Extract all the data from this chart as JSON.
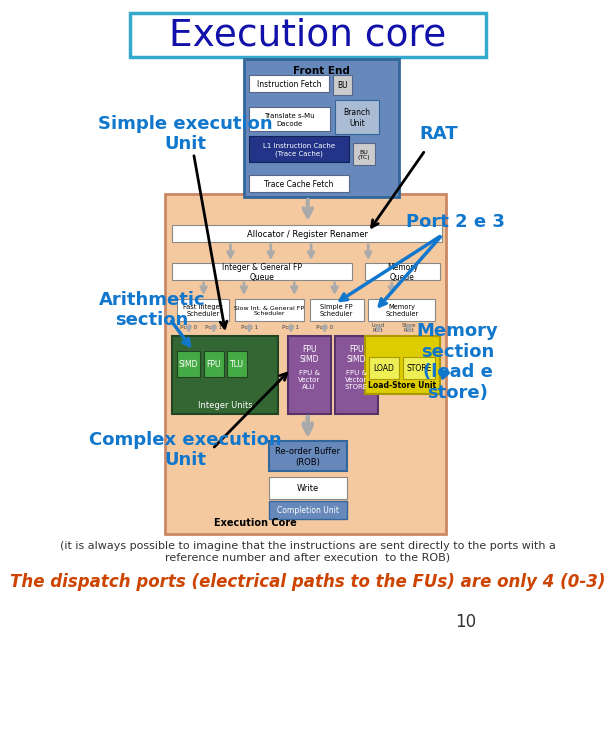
{
  "title": "Execution core",
  "title_color": "#1111aa",
  "title_fontsize": 27,
  "title_border_color": "#33aacc",
  "bg_color": "#ffffff",
  "label_color": "#1177cc",
  "label_fontsize": 13,
  "note_text": "(it is always possible to imagine that the instructions are sent directly to the ports with a\nreference number and after execution  to the ROB)",
  "note_fontsize": 8,
  "note_color": "#333333",
  "dispatch_text": "The dispatch ports (electrical paths to the FUs) are only 4 (0-3)",
  "dispatch_fontsize": 12,
  "dispatch_color": "#cc4400",
  "page_number": "10",
  "page_number_fontsize": 12,
  "page_number_color": "#333333",
  "front_end_fc": "#6688bb",
  "front_end_ec": "#336699",
  "exec_core_fc": "#f5c9a0",
  "exec_core_ec": "#cc8866",
  "green_fc": "#336633",
  "green_ec": "#224422",
  "green_unit_fc": "#44aa44",
  "purple_fc": "#885599",
  "purple_ec": "#553366",
  "yellow_fc": "#ddcc00",
  "yellow_ec": "#aa9900",
  "yellow_unit_fc": "#eeee55",
  "l1_fc": "#223388",
  "l1_ec": "#112255",
  "rob_fc": "#6688bb",
  "rob_ec": "#336699",
  "alloc_ec": "#888888",
  "arrow_gray": "#aaaaaa",
  "arrow_black": "black",
  "arrow_blue": "#1177cc"
}
